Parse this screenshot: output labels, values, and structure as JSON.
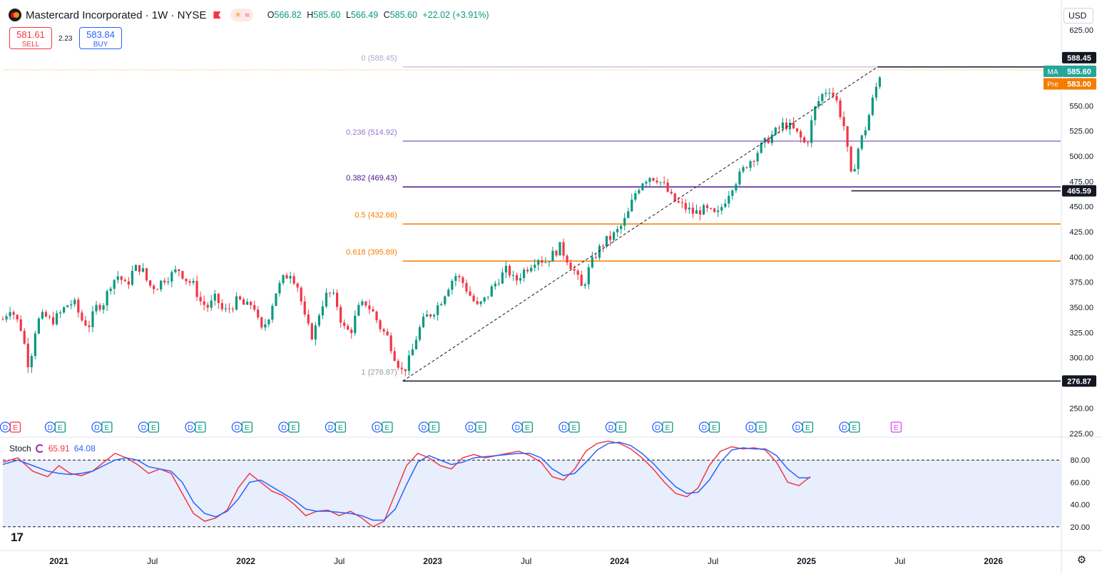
{
  "header": {
    "title": "Mastercard Incorporated · 1W · NYSE",
    "ohlc": [
      {
        "label": "O",
        "value": "566.82"
      },
      {
        "label": "H",
        "value": "585.60"
      },
      {
        "label": "L",
        "value": "566.49"
      },
      {
        "label": "C",
        "value": "585.60"
      }
    ],
    "change": "+22.02 (+3.91%)",
    "chip_sun": "☀",
    "chip_wave": "≈"
  },
  "trade": {
    "sell_price": "581.61",
    "sell_label": "SELL",
    "spread": "2.23",
    "buy_price": "583.84",
    "buy_label": "BUY"
  },
  "currency": "USD",
  "colors": {
    "up": "#089981",
    "down": "#f23645",
    "fib_0": "#b2a6d0",
    "fib_236": "#9575cd",
    "fib_382": "#4a148c",
    "fib_5": "#f57c00",
    "fib_618": "#f57c00",
    "stoch_k": "#f23645",
    "stoch_d": "#2962ff",
    "stoch_band": "#e8eefc"
  },
  "chart_data": {
    "type": "candlestick",
    "symbol": "Mastercard Incorporated",
    "interval": "1W",
    "exchange": "NYSE",
    "y_ticks": [
      "225.00",
      "250.00",
      "275.00",
      "300.00",
      "325.00",
      "350.00",
      "375.00",
      "400.00",
      "425.00",
      "450.00",
      "475.00",
      "500.00",
      "525.00",
      "550.00",
      "575.00",
      "600.00",
      "625.00"
    ],
    "ylim": [
      222,
      628
    ],
    "x_ticks": [
      {
        "label": "2021",
        "t": 2021.0
      },
      {
        "label": "Jul",
        "t": 2021.5
      },
      {
        "label": "2022",
        "t": 2022.0
      },
      {
        "label": "Jul",
        "t": 2022.5
      },
      {
        "label": "2023",
        "t": 2023.0
      },
      {
        "label": "Jul",
        "t": 2023.5
      },
      {
        "label": "2024",
        "t": 2024.0
      },
      {
        "label": "Jul",
        "t": 2024.5
      },
      {
        "label": "2025",
        "t": 2025.0
      },
      {
        "label": "Jul",
        "t": 2025.5
      },
      {
        "label": "2026",
        "t": 2026.0
      }
    ],
    "xlim": [
      2020.7,
      2026.36
    ],
    "price_labels": [
      {
        "text": "588.45",
        "value": 588.45,
        "tag": ""
      },
      {
        "text": "585.60",
        "value": 585.6,
        "tag": "MA"
      },
      {
        "text": "583.00",
        "value": 583.0,
        "tag": "Pre"
      },
      {
        "text": "465.59",
        "value": 465.59,
        "tag": ""
      },
      {
        "text": "276.87",
        "value": 276.87,
        "tag": ""
      }
    ],
    "fibonacci": [
      {
        "label": "0 (588.45)",
        "value": 588.45
      },
      {
        "label": "0.236 (514.92)",
        "value": 514.92
      },
      {
        "label": "0.382 (469.43)",
        "value": 469.43
      },
      {
        "label": "0.5 (432.66)",
        "value": 432.66
      },
      {
        "label": "0.618 (395.89)",
        "value": 395.89
      },
      {
        "label": "1 (276.87)",
        "value": 276.87
      }
    ],
    "fib_anchor": {
      "low_t": 2022.84,
      "low": 276.87,
      "high_t": 2025.38,
      "high": 588.45
    },
    "range_lines": [
      {
        "value": 588.45,
        "t_start": 2025.38
      },
      {
        "value": 465.59,
        "t_start": 2025.24
      },
      {
        "value": 276.87,
        "t_start": 2022.84
      }
    ],
    "close_path": [
      [
        2020.7,
        338
      ],
      [
        2020.74,
        350
      ],
      [
        2020.8,
        328
      ],
      [
        2020.84,
        290
      ],
      [
        2020.88,
        335
      ],
      [
        2020.92,
        342
      ],
      [
        2020.96,
        336
      ],
      [
        2021.0,
        342
      ],
      [
        2021.04,
        352
      ],
      [
        2021.08,
        355
      ],
      [
        2021.12,
        338
      ],
      [
        2021.16,
        332
      ],
      [
        2021.2,
        350
      ],
      [
        2021.24,
        355
      ],
      [
        2021.28,
        375
      ],
      [
        2021.32,
        382
      ],
      [
        2021.36,
        370
      ],
      [
        2021.4,
        388
      ],
      [
        2021.44,
        390
      ],
      [
        2021.48,
        372
      ],
      [
        2021.52,
        370
      ],
      [
        2021.56,
        378
      ],
      [
        2021.6,
        382
      ],
      [
        2021.64,
        388
      ],
      [
        2021.68,
        378
      ],
      [
        2021.72,
        372
      ],
      [
        2021.76,
        355
      ],
      [
        2021.8,
        350
      ],
      [
        2021.84,
        360
      ],
      [
        2021.88,
        345
      ],
      [
        2021.92,
        350
      ],
      [
        2021.96,
        358
      ],
      [
        2022.0,
        350
      ],
      [
        2022.04,
        355
      ],
      [
        2022.08,
        325
      ],
      [
        2022.12,
        340
      ],
      [
        2022.16,
        365
      ],
      [
        2022.2,
        378
      ],
      [
        2022.24,
        385
      ],
      [
        2022.28,
        370
      ],
      [
        2022.32,
        335
      ],
      [
        2022.36,
        320
      ],
      [
        2022.4,
        350
      ],
      [
        2022.44,
        365
      ],
      [
        2022.48,
        358
      ],
      [
        2022.52,
        330
      ],
      [
        2022.56,
        325
      ],
      [
        2022.6,
        348
      ],
      [
        2022.64,
        355
      ],
      [
        2022.68,
        345
      ],
      [
        2022.72,
        330
      ],
      [
        2022.76,
        320
      ],
      [
        2022.8,
        300
      ],
      [
        2022.84,
        285
      ],
      [
        2022.88,
        300
      ],
      [
        2022.92,
        325
      ],
      [
        2022.96,
        340
      ],
      [
        2023.0,
        345
      ],
      [
        2023.04,
        355
      ],
      [
        2023.08,
        370
      ],
      [
        2023.12,
        382
      ],
      [
        2023.16,
        375
      ],
      [
        2023.2,
        362
      ],
      [
        2023.24,
        350
      ],
      [
        2023.28,
        358
      ],
      [
        2023.32,
        370
      ],
      [
        2023.36,
        380
      ],
      [
        2023.4,
        388
      ],
      [
        2023.44,
        375
      ],
      [
        2023.48,
        385
      ],
      [
        2023.52,
        392
      ],
      [
        2023.56,
        400
      ],
      [
        2023.6,
        395
      ],
      [
        2023.64,
        402
      ],
      [
        2023.68,
        410
      ],
      [
        2023.72,
        398
      ],
      [
        2023.76,
        385
      ],
      [
        2023.8,
        368
      ],
      [
        2023.84,
        390
      ],
      [
        2023.88,
        405
      ],
      [
        2023.92,
        415
      ],
      [
        2023.96,
        420
      ],
      [
        2024.0,
        428
      ],
      [
        2024.04,
        440
      ],
      [
        2024.08,
        462
      ],
      [
        2024.12,
        475
      ],
      [
        2024.16,
        480
      ],
      [
        2024.2,
        478
      ],
      [
        2024.24,
        470
      ],
      [
        2024.28,
        458
      ],
      [
        2024.32,
        452
      ],
      [
        2024.36,
        448
      ],
      [
        2024.4,
        443
      ],
      [
        2024.44,
        447
      ],
      [
        2024.48,
        445
      ],
      [
        2024.52,
        440
      ],
      [
        2024.56,
        455
      ],
      [
        2024.6,
        470
      ],
      [
        2024.64,
        480
      ],
      [
        2024.68,
        492
      ],
      [
        2024.72,
        500
      ],
      [
        2024.76,
        510
      ],
      [
        2024.8,
        518
      ],
      [
        2024.84,
        525
      ],
      [
        2024.88,
        532
      ],
      [
        2024.92,
        528
      ],
      [
        2024.96,
        520
      ],
      [
        2025.0,
        510
      ],
      [
        2025.04,
        545
      ],
      [
        2025.08,
        560
      ],
      [
        2025.12,
        568
      ],
      [
        2025.16,
        555
      ],
      [
        2025.2,
        530
      ],
      [
        2025.24,
        478
      ],
      [
        2025.28,
        510
      ],
      [
        2025.32,
        530
      ],
      [
        2025.36,
        560
      ],
      [
        2025.4,
        585.6
      ]
    ],
    "events": [
      {
        "t": 2020.74,
        "labels": [
          "D",
          "E"
        ],
        "e_color": "#f23645"
      },
      {
        "t": 2020.98,
        "labels": [
          "D",
          "E"
        ]
      },
      {
        "t": 2021.23,
        "labels": [
          "D",
          "E"
        ]
      },
      {
        "t": 2021.48,
        "labels": [
          "D",
          "E"
        ]
      },
      {
        "t": 2021.73,
        "labels": [
          "D",
          "E"
        ]
      },
      {
        "t": 2021.98,
        "labels": [
          "D",
          "E"
        ]
      },
      {
        "t": 2022.23,
        "labels": [
          "D",
          "E"
        ]
      },
      {
        "t": 2022.48,
        "labels": [
          "D",
          "E"
        ]
      },
      {
        "t": 2022.73,
        "labels": [
          "D",
          "E"
        ]
      },
      {
        "t": 2022.98,
        "labels": [
          "D",
          "E"
        ]
      },
      {
        "t": 2023.23,
        "labels": [
          "D",
          "E"
        ]
      },
      {
        "t": 2023.48,
        "labels": [
          "D",
          "E"
        ]
      },
      {
        "t": 2023.73,
        "labels": [
          "D",
          "E"
        ]
      },
      {
        "t": 2023.98,
        "labels": [
          "D",
          "E"
        ]
      },
      {
        "t": 2024.23,
        "labels": [
          "D",
          "E"
        ]
      },
      {
        "t": 2024.48,
        "labels": [
          "D",
          "E"
        ]
      },
      {
        "t": 2024.73,
        "labels": [
          "D",
          "E"
        ]
      },
      {
        "t": 2024.98,
        "labels": [
          "D",
          "E"
        ]
      },
      {
        "t": 2025.23,
        "labels": [
          "D",
          "E"
        ]
      },
      {
        "t": 2025.48,
        "labels": [
          "E"
        ],
        "e_color": "#e040fb"
      }
    ],
    "stochastic": {
      "name": "Stoch",
      "k_value": "65.91",
      "d_value": "64.08",
      "y_ticks": [
        "20.00",
        "40.00",
        "60.00",
        "80.00"
      ],
      "ylim": [
        0,
        100
      ],
      "band": [
        20,
        80
      ],
      "k": [
        [
          2020.7,
          78
        ],
        [
          2020.78,
          82
        ],
        [
          2020.86,
          70
        ],
        [
          2020.94,
          65
        ],
        [
          2021.0,
          75
        ],
        [
          2021.06,
          68
        ],
        [
          2021.12,
          66
        ],
        [
          2021.18,
          70
        ],
        [
          2021.24,
          78
        ],
        [
          2021.3,
          86
        ],
        [
          2021.36,
          82
        ],
        [
          2021.42,
          76
        ],
        [
          2021.48,
          68
        ],
        [
          2021.54,
          72
        ],
        [
          2021.6,
          68
        ],
        [
          2021.66,
          50
        ],
        [
          2021.72,
          32
        ],
        [
          2021.78,
          25
        ],
        [
          2021.84,
          28
        ],
        [
          2021.9,
          35
        ],
        [
          2021.96,
          55
        ],
        [
          2022.02,
          68
        ],
        [
          2022.08,
          60
        ],
        [
          2022.14,
          52
        ],
        [
          2022.2,
          48
        ],
        [
          2022.26,
          40
        ],
        [
          2022.32,
          30
        ],
        [
          2022.38,
          34
        ],
        [
          2022.44,
          35
        ],
        [
          2022.5,
          30
        ],
        [
          2022.56,
          34
        ],
        [
          2022.62,
          28
        ],
        [
          2022.68,
          20
        ],
        [
          2022.74,
          25
        ],
        [
          2022.8,
          50
        ],
        [
          2022.86,
          75
        ],
        [
          2022.92,
          86
        ],
        [
          2022.98,
          82
        ],
        [
          2023.04,
          75
        ],
        [
          2023.1,
          72
        ],
        [
          2023.16,
          82
        ],
        [
          2023.22,
          85
        ],
        [
          2023.28,
          82
        ],
        [
          2023.34,
          84
        ],
        [
          2023.4,
          86
        ],
        [
          2023.46,
          88
        ],
        [
          2023.52,
          84
        ],
        [
          2023.58,
          78
        ],
        [
          2023.64,
          65
        ],
        [
          2023.7,
          62
        ],
        [
          2023.76,
          72
        ],
        [
          2023.82,
          88
        ],
        [
          2023.88,
          95
        ],
        [
          2023.94,
          97
        ],
        [
          2024.0,
          95
        ],
        [
          2024.06,
          90
        ],
        [
          2024.12,
          82
        ],
        [
          2024.18,
          72
        ],
        [
          2024.24,
          60
        ],
        [
          2024.3,
          50
        ],
        [
          2024.36,
          47
        ],
        [
          2024.42,
          55
        ],
        [
          2024.48,
          75
        ],
        [
          2024.54,
          88
        ],
        [
          2024.6,
          92
        ],
        [
          2024.66,
          90
        ],
        [
          2024.72,
          91
        ],
        [
          2024.78,
          89
        ],
        [
          2024.84,
          78
        ],
        [
          2024.9,
          60
        ],
        [
          2024.96,
          57
        ],
        [
          2025.02,
          65
        ]
      ],
      "d": [
        [
          2020.7,
          76
        ],
        [
          2020.78,
          80
        ],
        [
          2020.86,
          75
        ],
        [
          2020.94,
          70
        ],
        [
          2021.0,
          68
        ],
        [
          2021.06,
          67
        ],
        [
          2021.12,
          68
        ],
        [
          2021.18,
          70
        ],
        [
          2021.24,
          75
        ],
        [
          2021.3,
          80
        ],
        [
          2021.36,
          82
        ],
        [
          2021.42,
          80
        ],
        [
          2021.48,
          74
        ],
        [
          2021.54,
          72
        ],
        [
          2021.6,
          70
        ],
        [
          2021.66,
          60
        ],
        [
          2021.72,
          42
        ],
        [
          2021.78,
          32
        ],
        [
          2021.84,
          29
        ],
        [
          2021.9,
          34
        ],
        [
          2021.96,
          45
        ],
        [
          2022.02,
          60
        ],
        [
          2022.08,
          62
        ],
        [
          2022.14,
          56
        ],
        [
          2022.2,
          50
        ],
        [
          2022.26,
          44
        ],
        [
          2022.32,
          36
        ],
        [
          2022.38,
          34
        ],
        [
          2022.44,
          34
        ],
        [
          2022.5,
          33
        ],
        [
          2022.56,
          32
        ],
        [
          2022.62,
          30
        ],
        [
          2022.68,
          26
        ],
        [
          2022.74,
          26
        ],
        [
          2022.8,
          36
        ],
        [
          2022.86,
          58
        ],
        [
          2022.92,
          78
        ],
        [
          2022.98,
          84
        ],
        [
          2023.04,
          80
        ],
        [
          2023.1,
          76
        ],
        [
          2023.16,
          78
        ],
        [
          2023.22,
          82
        ],
        [
          2023.28,
          83
        ],
        [
          2023.34,
          84
        ],
        [
          2023.4,
          85
        ],
        [
          2023.46,
          86
        ],
        [
          2023.52,
          86
        ],
        [
          2023.58,
          82
        ],
        [
          2023.64,
          72
        ],
        [
          2023.7,
          66
        ],
        [
          2023.76,
          68
        ],
        [
          2023.82,
          78
        ],
        [
          2023.88,
          89
        ],
        [
          2023.94,
          95
        ],
        [
          2024.0,
          96
        ],
        [
          2024.06,
          93
        ],
        [
          2024.12,
          86
        ],
        [
          2024.18,
          77
        ],
        [
          2024.24,
          66
        ],
        [
          2024.3,
          56
        ],
        [
          2024.36,
          50
        ],
        [
          2024.42,
          51
        ],
        [
          2024.48,
          62
        ],
        [
          2024.54,
          78
        ],
        [
          2024.6,
          89
        ],
        [
          2024.66,
          91
        ],
        [
          2024.72,
          90
        ],
        [
          2024.78,
          90
        ],
        [
          2024.84,
          84
        ],
        [
          2024.9,
          72
        ],
        [
          2024.96,
          64
        ],
        [
          2025.02,
          64
        ]
      ]
    }
  }
}
